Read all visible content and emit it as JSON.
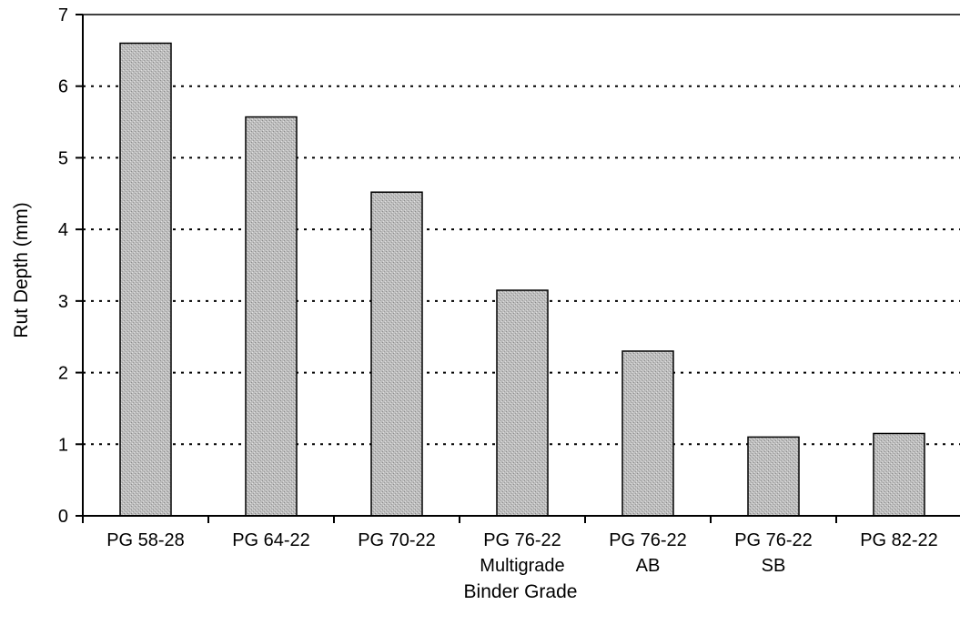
{
  "chart_data": {
    "type": "bar",
    "title": "",
    "xlabel": "Binder Grade",
    "ylabel": "Rut Depth (mm)",
    "categories": [
      [
        "PG 58-28"
      ],
      [
        "PG 64-22"
      ],
      [
        "PG 70-22"
      ],
      [
        "PG 76-22",
        "Multigrade"
      ],
      [
        "PG 76-22",
        "AB"
      ],
      [
        "PG 76-22",
        "SB"
      ],
      [
        "PG 82-22"
      ]
    ],
    "values": [
      6.6,
      5.57,
      4.52,
      3.15,
      2.3,
      1.1,
      1.15
    ],
    "ylim": [
      0,
      7
    ],
    "yticks": [
      "0",
      "1",
      "2",
      "3",
      "4",
      "5",
      "6",
      "7"
    ],
    "grid": "horizontal dotted",
    "legend": "none",
    "colors": {
      "bar_fill": "#b4b4b4",
      "bar_stroke": "#000000",
      "grid": "#000000"
    }
  }
}
